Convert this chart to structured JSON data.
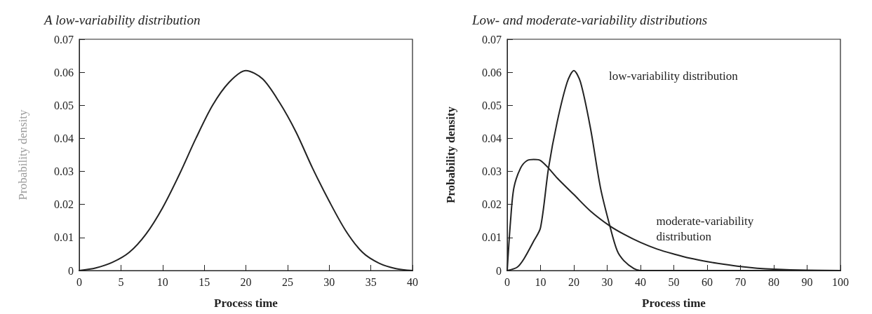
{
  "chart_data": [
    {
      "type": "line",
      "title": "A low-variability distribution",
      "xlabel": "Process time",
      "ylabel": "Probability density",
      "xlim": [
        0,
        40
      ],
      "xticks": [
        0,
        5,
        10,
        15,
        20,
        25,
        30,
        35,
        40
      ],
      "ylim": [
        0,
        0.07
      ],
      "yticks": [
        0,
        0.01,
        0.02,
        0.03,
        0.04,
        0.05,
        0.06,
        0.07
      ],
      "grid": false,
      "marker": "none",
      "line_style": "solid",
      "series": [
        {
          "color": "#222222",
          "x": [
            0,
            2,
            4,
            6,
            8,
            10,
            12,
            14,
            16,
            18,
            20,
            22,
            24,
            26,
            28,
            30,
            32,
            34,
            36,
            38,
            40
          ],
          "values": [
            0,
            0.0008,
            0.0025,
            0.0055,
            0.011,
            0.019,
            0.029,
            0.04,
            0.05,
            0.057,
            0.0605,
            0.058,
            0.051,
            0.042,
            0.031,
            0.021,
            0.012,
            0.0055,
            0.0022,
            0.0006,
            0
          ]
        }
      ]
    },
    {
      "type": "line",
      "title": "Low- and moderate-variability distributions",
      "xlabel": "Process time",
      "ylabel": "Probability density",
      "xlim": [
        0,
        100
      ],
      "xticks": [
        0,
        10,
        20,
        30,
        40,
        50,
        60,
        70,
        80,
        90,
        100
      ],
      "ylim": [
        0,
        0.07
      ],
      "yticks": [
        0,
        0.01,
        0.02,
        0.03,
        0.04,
        0.05,
        0.06,
        0.07
      ],
      "grid": false,
      "marker": "none",
      "line_style": "solid",
      "series": [
        {
          "name": "low-variability distribution",
          "color": "#222222",
          "x": [
            0,
            3,
            5,
            8,
            10,
            12.4,
            15,
            18,
            20,
            22,
            25,
            28,
            30.8,
            33,
            35,
            38,
            40,
            100
          ],
          "values": [
            0,
            0.001,
            0.0035,
            0.009,
            0.013,
            0.031,
            0.045,
            0.057,
            0.0605,
            0.057,
            0.043,
            0.025,
            0.0135,
            0.006,
            0.003,
            0.0006,
            0,
            0
          ]
        },
        {
          "name": "moderate-variability distribution",
          "color": "#222222",
          "x": [
            0,
            1,
            2,
            4,
            6,
            8,
            10,
            12.4,
            15,
            20,
            25,
            30.8,
            35,
            40,
            45,
            50,
            55,
            60,
            65,
            70,
            75,
            80,
            90,
            100
          ],
          "values": [
            0,
            0.015,
            0.025,
            0.031,
            0.0333,
            0.0336,
            0.0333,
            0.031,
            0.028,
            0.023,
            0.018,
            0.0135,
            0.011,
            0.0085,
            0.0065,
            0.005,
            0.0037,
            0.0027,
            0.0019,
            0.0012,
            0.0007,
            0.0004,
            0.0001,
            0
          ]
        }
      ]
    }
  ]
}
